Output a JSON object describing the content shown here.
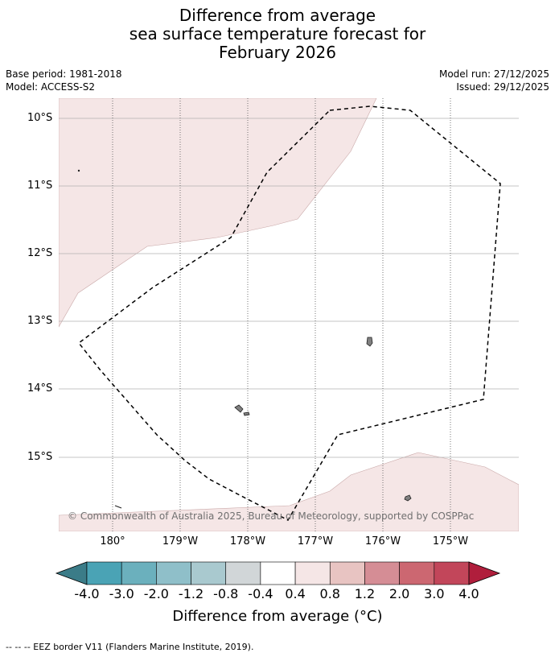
{
  "title": {
    "line1": "Difference from average",
    "line2": "sea surface temperature forecast for",
    "line3": "February 2026"
  },
  "meta": {
    "base_period": "Base period: 1981-2018",
    "model": "Model: ACCESS-S2",
    "model_run": "Model run: 27/12/2025",
    "issued": "Issued: 29/12/2025"
  },
  "map": {
    "lat_labels": [
      "10°S",
      "11°S",
      "12°S",
      "13°S",
      "14°S",
      "15°S"
    ],
    "lon_labels": [
      "180°",
      "179°W",
      "178°W",
      "177°W",
      "176°W",
      "175°W"
    ],
    "copyright": "© Commonwealth of Australia 2025, Bureau of Meteorology, supported by COSPPac",
    "anomaly_fill_color": "#f5e6e6",
    "eez_line_color": "#000000"
  },
  "colorbar": {
    "title": "Difference from average (°C)",
    "ticks": [
      "-4.0",
      "-3.0",
      "-2.0",
      "-1.2",
      "-0.8",
      "-0.4",
      "0.4",
      "0.8",
      "1.2",
      "2.0",
      "3.0",
      "4.0"
    ],
    "colors": [
      "#3b7c88",
      "#4aa3b5",
      "#6bb0bd",
      "#8fbfc9",
      "#a9c9cf",
      "#d1d6d8",
      "#ffffff",
      "#f5e6e6",
      "#e8c4c2",
      "#d58d95",
      "#cc6771",
      "#c2465a",
      "#b01e3c"
    ]
  },
  "footer": "--  --  -- EEZ border V11 (Flanders Marine Institute, 2019)."
}
